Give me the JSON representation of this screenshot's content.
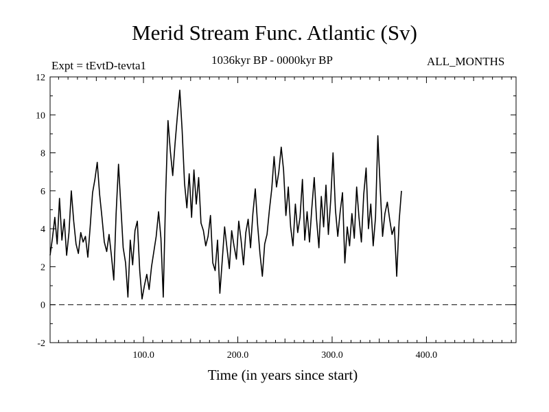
{
  "header": {
    "title": "Merid Stream Func. Atlantic (Sv)",
    "expt": "Expt = tEvtD-tevta1",
    "period": "1036kyr BP - 0000kyr BP",
    "months": "ALL_MONTHS"
  },
  "chart_data": {
    "type": "line",
    "title": "Merid Stream Func. Atlantic (Sv)",
    "xlabel": "Time (in years since start)",
    "ylabel": "",
    "xlim": [
      1,
      495
    ],
    "ylim": [
      -2,
      12
    ],
    "x_ticks": [
      100,
      200,
      300,
      400
    ],
    "x_tick_labels": [
      "100.0",
      "200.0",
      "300.0",
      "400.0"
    ],
    "y_ticks": [
      -2,
      0,
      2,
      4,
      6,
      8,
      10,
      12
    ],
    "y_tick_labels": [
      "-2",
      "0",
      "2",
      "4",
      "6",
      "8",
      "10",
      "12"
    ],
    "reference_line": {
      "y": 0,
      "style": "dashed"
    },
    "color": "#000000",
    "series": [
      {
        "name": "Merid Stream Func. Atlantic",
        "x_start": 1,
        "x_step": 2.5,
        "values": [
          2.6,
          3.5,
          4.6,
          3.2,
          5.6,
          3.4,
          4.5,
          2.6,
          3.8,
          6.0,
          4.4,
          3.2,
          2.7,
          3.8,
          3.3,
          3.6,
          2.5,
          4.1,
          5.9,
          6.6,
          7.5,
          5.8,
          4.6,
          3.3,
          2.8,
          3.7,
          2.6,
          1.3,
          4.8,
          7.4,
          5.2,
          3.0,
          2.2,
          0.4,
          3.4,
          2.1,
          3.9,
          4.4,
          1.8,
          0.3,
          1.0,
          1.6,
          0.8,
          2.0,
          2.8,
          3.6,
          4.9,
          3.5,
          0.4,
          5.8,
          9.7,
          8.1,
          6.8,
          8.5,
          10.0,
          11.3,
          9.2,
          6.4,
          5.1,
          6.9,
          4.6,
          7.1,
          5.3,
          6.7,
          4.3,
          3.9,
          3.1,
          3.6,
          4.7,
          2.2,
          1.8,
          3.4,
          0.6,
          2.3,
          4.1,
          3.0,
          1.9,
          3.9,
          3.1,
          2.4,
          4.4,
          3.4,
          2.1,
          3.8,
          4.5,
          3.0,
          4.8,
          6.1,
          4.2,
          2.7,
          1.5,
          3.2,
          3.7,
          5.0,
          6.1,
          7.8,
          6.2,
          7.0,
          8.3,
          7.1,
          4.7,
          6.2,
          4.1,
          3.1,
          5.3,
          3.8,
          4.6,
          6.6,
          3.4,
          4.9,
          3.3,
          5.1,
          6.7,
          4.5,
          3.0,
          5.7,
          4.1,
          6.3,
          3.7,
          5.5,
          8.0,
          5.0,
          3.6,
          4.9,
          5.9,
          2.2,
          4.1,
          3.1,
          4.8,
          3.5,
          6.2,
          4.6,
          3.3,
          5.8,
          7.2,
          4.0,
          5.3,
          3.1,
          4.6,
          8.9,
          6.1,
          3.6,
          4.8,
          5.4,
          4.5,
          3.7,
          4.1,
          1.5,
          4.4,
          6.0
        ],
        "note": "values approximated from the plotted curve; x in years since start"
      }
    ]
  }
}
